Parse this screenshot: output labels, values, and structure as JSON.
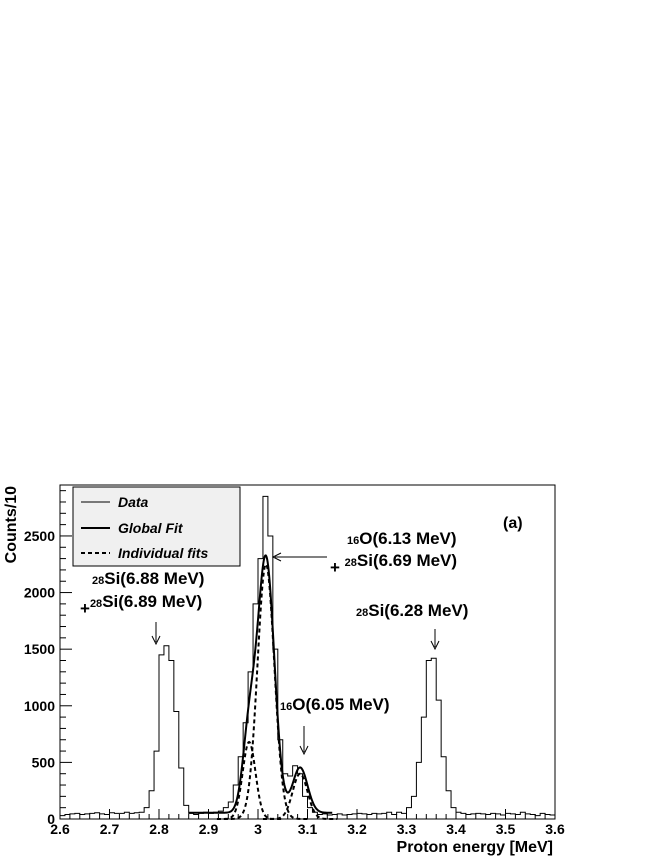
{
  "chart_data": {
    "type": "line",
    "panel_label": "(a)",
    "xlabel": "Proton energy [MeV]",
    "ylabel": "Counts/10",
    "xlim": [
      2.6,
      3.6
    ],
    "ylim": [
      0,
      2950
    ],
    "x_ticks": [
      "2.6",
      "2.7",
      "2.8",
      "2.9",
      "3",
      "3.1",
      "3.2",
      "3.3",
      "3.4",
      "3.5",
      "3.6"
    ],
    "y_ticks": [
      "0",
      "500",
      "1000",
      "1500",
      "2000",
      "2500"
    ],
    "legend": {
      "placement": "top-left",
      "entries": [
        {
          "label": "Data",
          "style": "thin-solid"
        },
        {
          "label": "Global Fit",
          "style": "thick-solid"
        },
        {
          "label": "Individual fits",
          "style": "dashed"
        }
      ]
    },
    "histogram": {
      "name": "Data",
      "bin_width": 0.01,
      "bin_start": 2.6,
      "counts": [
        30,
        40,
        45,
        50,
        40,
        45,
        50,
        55,
        45,
        40,
        55,
        50,
        50,
        60,
        50,
        55,
        60,
        100,
        250,
        600,
        1450,
        1530,
        1400,
        950,
        450,
        120,
        50,
        40,
        50,
        60,
        50,
        60,
        70,
        100,
        150,
        300,
        550,
        850,
        1300,
        1900,
        2300,
        2850,
        2500,
        1500,
        700,
        400,
        380,
        470,
        400,
        200,
        100,
        60,
        40,
        45,
        35,
        40,
        45,
        35,
        40,
        45,
        50,
        45,
        40,
        50,
        45,
        50,
        60,
        40,
        60,
        50,
        100,
        200,
        500,
        900,
        1400,
        1420,
        1050,
        550,
        250,
        100,
        60,
        50,
        40,
        45,
        50,
        45,
        40,
        50,
        45,
        35,
        50,
        45,
        40,
        60,
        45,
        40,
        30,
        50,
        40,
        35
      ]
    },
    "global_fit": {
      "name": "Global Fit",
      "x_range": [
        2.86,
        3.15
      ],
      "background": 55
    },
    "individual_fits": [
      {
        "center": 2.982,
        "amplitude": 680,
        "sigma": 0.013
      },
      {
        "center": 3.016,
        "amplitude": 2250,
        "sigma": 0.017
      },
      {
        "center": 3.085,
        "amplitude": 400,
        "sigma": 0.015
      }
    ],
    "annotations": [
      {
        "lines": [
          [
            {
              "sup": "28"
            },
            {
              "text": "Si(6.88 MeV)"
            }
          ],
          [
            {
              "text": "+"
            },
            {
              "sup": "28"
            },
            {
              "text": "Si(6.89 MeV)"
            }
          ]
        ]
      },
      {
        "lines": [
          [
            {
              "sup": "16"
            },
            {
              "text": "O(6.13 MeV)"
            }
          ],
          [
            {
              "text": "+ "
            },
            {
              "sup": "28"
            },
            {
              "text": "Si(6.69 MeV)"
            }
          ]
        ]
      },
      {
        "lines": [
          [
            {
              "sup": "16"
            },
            {
              "text": "O(6.05 MeV)"
            }
          ]
        ]
      },
      {
        "lines": [
          [
            {
              "sup": "28"
            },
            {
              "text": "Si(6.28 MeV)"
            }
          ]
        ]
      }
    ]
  }
}
